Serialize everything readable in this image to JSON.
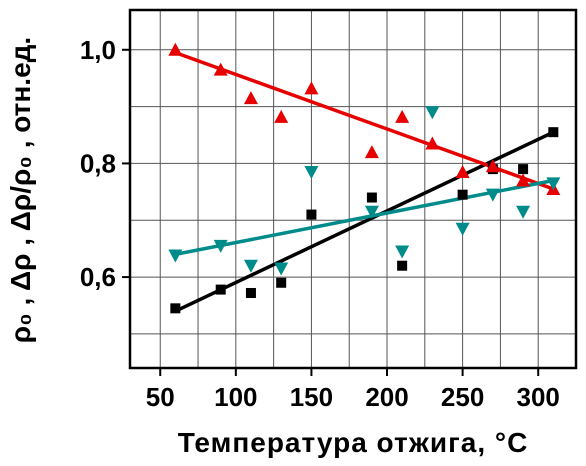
{
  "chart_data": {
    "type": "scatter",
    "xlabel": "Температура отжига, °С",
    "ylabel": "ρ₀ , Δρ , Δρ/ρ₀ , отн.ед.",
    "xlim": [
      30,
      325
    ],
    "ylim": [
      0.44,
      1.07
    ],
    "xticks": [
      50,
      100,
      150,
      200,
      250,
      300
    ],
    "yticks": [
      0.6,
      0.8,
      1.0
    ],
    "ytick_labels": [
      "0,6",
      "0,8",
      "1,0"
    ],
    "grid": true,
    "series": [
      {
        "marker": "square",
        "color": "#000000",
        "x": [
          60,
          90,
          110,
          130,
          150,
          190,
          210,
          250,
          270,
          290,
          310
        ],
        "y": [
          0.545,
          0.578,
          0.572,
          0.59,
          0.71,
          0.74,
          0.62,
          0.745,
          0.79,
          0.79,
          0.855
        ],
        "fit": {
          "x": [
            60,
            310
          ],
          "y": [
            0.54,
            0.855
          ]
        }
      },
      {
        "marker": "triangle-up",
        "color": "#e60000",
        "x": [
          60,
          90,
          110,
          130,
          150,
          190,
          210,
          230,
          250,
          270,
          290,
          310
        ],
        "y": [
          1.0,
          0.965,
          0.915,
          0.882,
          0.932,
          0.82,
          0.882,
          0.835,
          0.785,
          0.795,
          0.77,
          0.755
        ],
        "fit": {
          "x": [
            60,
            310
          ],
          "y": [
            0.995,
            0.755
          ]
        }
      },
      {
        "marker": "triangle-down",
        "color": "#008b8b",
        "x": [
          60,
          90,
          110,
          130,
          150,
          190,
          210,
          230,
          250,
          270,
          290,
          310
        ],
        "y": [
          0.638,
          0.655,
          0.62,
          0.615,
          0.785,
          0.715,
          0.645,
          0.89,
          0.685,
          0.745,
          0.715,
          0.765
        ],
        "fit": {
          "x": [
            60,
            310
          ],
          "y": [
            0.64,
            0.77
          ]
        }
      }
    ]
  }
}
